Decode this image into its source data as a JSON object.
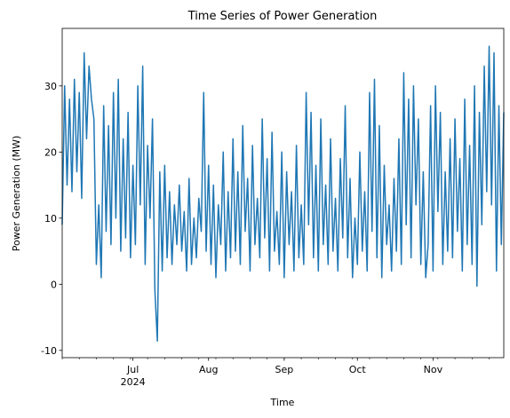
{
  "chart_data": {
    "type": "line",
    "title": "Time Series of Power Generation",
    "xlabel": "Time",
    "ylabel": "Power Generation (MW)",
    "x": [
      "2024-06-02",
      "2024-06-03",
      "2024-06-04",
      "2024-06-05",
      "2024-06-06",
      "2024-06-07",
      "2024-06-08",
      "2024-06-09",
      "2024-06-10",
      "2024-06-11",
      "2024-06-12",
      "2024-06-13",
      "2024-06-14",
      "2024-06-15",
      "2024-06-16",
      "2024-06-17",
      "2024-06-18",
      "2024-06-19",
      "2024-06-20",
      "2024-06-21",
      "2024-06-22",
      "2024-06-23",
      "2024-06-24",
      "2024-06-25",
      "2024-06-26",
      "2024-06-27",
      "2024-06-28",
      "2024-06-29",
      "2024-06-30",
      "2024-07-01",
      "2024-07-02",
      "2024-07-03",
      "2024-07-04",
      "2024-07-05",
      "2024-07-06",
      "2024-07-07",
      "2024-07-08",
      "2024-07-09",
      "2024-07-10",
      "2024-07-11",
      "2024-07-12",
      "2024-07-13",
      "2024-07-14",
      "2024-07-15",
      "2024-07-16",
      "2024-07-17",
      "2024-07-18",
      "2024-07-19",
      "2024-07-20",
      "2024-07-21",
      "2024-07-22",
      "2024-07-23",
      "2024-07-24",
      "2024-07-25",
      "2024-07-26",
      "2024-07-27",
      "2024-07-28",
      "2024-07-29",
      "2024-07-30",
      "2024-07-31",
      "2024-08-01",
      "2024-08-02",
      "2024-08-03",
      "2024-08-04",
      "2024-08-05",
      "2024-08-06",
      "2024-08-07",
      "2024-08-08",
      "2024-08-09",
      "2024-08-10",
      "2024-08-11",
      "2024-08-12",
      "2024-08-13",
      "2024-08-14",
      "2024-08-15",
      "2024-08-16",
      "2024-08-17",
      "2024-08-18",
      "2024-08-19",
      "2024-08-20",
      "2024-08-21",
      "2024-08-22",
      "2024-08-23",
      "2024-08-24",
      "2024-08-25",
      "2024-08-26",
      "2024-08-27",
      "2024-08-28",
      "2024-08-29",
      "2024-08-30",
      "2024-08-31",
      "2024-09-01",
      "2024-09-02",
      "2024-09-03",
      "2024-09-04",
      "2024-09-05",
      "2024-09-06",
      "2024-09-07",
      "2024-09-08",
      "2024-09-09",
      "2024-09-10",
      "2024-09-11",
      "2024-09-12",
      "2024-09-13",
      "2024-09-14",
      "2024-09-15",
      "2024-09-16",
      "2024-09-17",
      "2024-09-18",
      "2024-09-19",
      "2024-09-20",
      "2024-09-21",
      "2024-09-22",
      "2024-09-23",
      "2024-09-24",
      "2024-09-25",
      "2024-09-26",
      "2024-09-27",
      "2024-09-28",
      "2024-09-29",
      "2024-09-30",
      "2024-10-01",
      "2024-10-02",
      "2024-10-03",
      "2024-10-04",
      "2024-10-05",
      "2024-10-06",
      "2024-10-07",
      "2024-10-08",
      "2024-10-09",
      "2024-10-10",
      "2024-10-11",
      "2024-10-12",
      "2024-10-13",
      "2024-10-14",
      "2024-10-15",
      "2024-10-16",
      "2024-10-17",
      "2024-10-18",
      "2024-10-19",
      "2024-10-20",
      "2024-10-21",
      "2024-10-22",
      "2024-10-23",
      "2024-10-24",
      "2024-10-25",
      "2024-10-26",
      "2024-10-27",
      "2024-10-28",
      "2024-10-29",
      "2024-10-30",
      "2024-10-31",
      "2024-11-01",
      "2024-11-02",
      "2024-11-03",
      "2024-11-04",
      "2024-11-05",
      "2024-11-06",
      "2024-11-07",
      "2024-11-08",
      "2024-11-09",
      "2024-11-10",
      "2024-11-11",
      "2024-11-12",
      "2024-11-13",
      "2024-11-14",
      "2024-11-15",
      "2024-11-16",
      "2024-11-17",
      "2024-11-18",
      "2024-11-19",
      "2024-11-20",
      "2024-11-21",
      "2024-11-22",
      "2024-11-23",
      "2024-11-24",
      "2024-11-25",
      "2024-11-26",
      "2024-11-27",
      "2024-11-28",
      "2024-11-29",
      "2024-11-30"
    ],
    "series": [
      {
        "name": "Power Generation",
        "color": "#1f77b4",
        "values": [
          9,
          30,
          15,
          28,
          14,
          31,
          17,
          29,
          13,
          35,
          22,
          33,
          28,
          25,
          3,
          12,
          1,
          27,
          8,
          24,
          6,
          29,
          10,
          31,
          5,
          22,
          7,
          26,
          4,
          18,
          6,
          30,
          12,
          33,
          3,
          21,
          10,
          25,
          -1,
          -8.6,
          17,
          2,
          18,
          4,
          14,
          3,
          12,
          6,
          15,
          5,
          11,
          2,
          16,
          3,
          10,
          4,
          13,
          8,
          29,
          5,
          18,
          3,
          15,
          1,
          12,
          6,
          20,
          2,
          14,
          4,
          22,
          5,
          17,
          3,
          24,
          8,
          16,
          2,
          21,
          6,
          13,
          4,
          25,
          7,
          19,
          2,
          23,
          5,
          11,
          3,
          20,
          1,
          17,
          6,
          14,
          2,
          21,
          4,
          12,
          3,
          29,
          9,
          26,
          4,
          18,
          2,
          25,
          6,
          15,
          3,
          22,
          5,
          13,
          2,
          19,
          7,
          27,
          4,
          16,
          1,
          10,
          3,
          20,
          5,
          14,
          2,
          29,
          8,
          31,
          4,
          24,
          1,
          18,
          6,
          12,
          2,
          16,
          5,
          22,
          3,
          32,
          9,
          28,
          4,
          30,
          12,
          25,
          3,
          17,
          1,
          6,
          27,
          2,
          30,
          11,
          26,
          3,
          17,
          5,
          22,
          4,
          25,
          8,
          19,
          2,
          28,
          6,
          21,
          3,
          30,
          -0.3,
          26,
          9,
          33,
          14,
          36,
          12,
          35,
          2,
          27,
          6,
          26
        ]
      }
    ],
    "xlim": [
      "2024-06-02",
      "2024-11-30"
    ],
    "xticks": [
      {
        "value": "2024-07-01",
        "label": "Jul"
      },
      {
        "value": "2024-08-01",
        "label": "Aug"
      },
      {
        "value": "2024-09-01",
        "label": "Sep"
      },
      {
        "value": "2024-10-01",
        "label": "Oct"
      },
      {
        "value": "2024-11-01",
        "label": "Nov"
      }
    ],
    "x_year_label": "2024",
    "ylim": [
      -11.1,
      38.7
    ],
    "yticks": [
      -10,
      0,
      10,
      20,
      30
    ],
    "grid": false
  }
}
